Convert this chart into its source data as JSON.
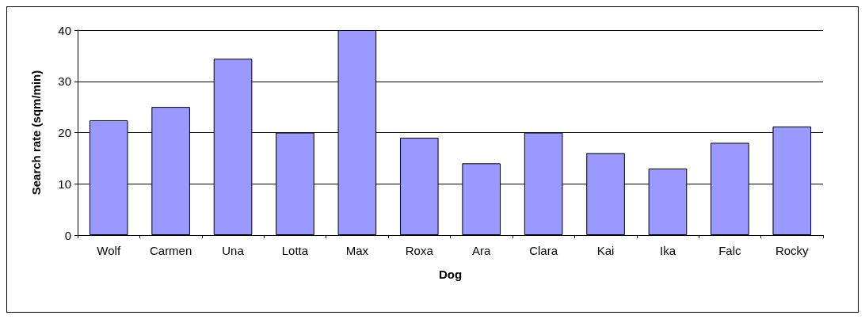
{
  "chart_data": {
    "type": "bar",
    "xlabel": "Dog",
    "ylabel": "Search rate (sqm/min)",
    "categories": [
      "Wolf",
      "Carmen",
      "Una",
      "Lotta",
      "Max",
      "Roxa",
      "Ara",
      "Clara",
      "Kai",
      "Ika",
      "Falc",
      "Rocky"
    ],
    "values": [
      22.4,
      25,
      34.4,
      20,
      40,
      19,
      14,
      20,
      16,
      13,
      18,
      21.2
    ],
    "color": "#9999ff",
    "ylim": [
      0,
      40
    ],
    "yticks": [
      0,
      10,
      20,
      30,
      40
    ],
    "grid": "y"
  }
}
